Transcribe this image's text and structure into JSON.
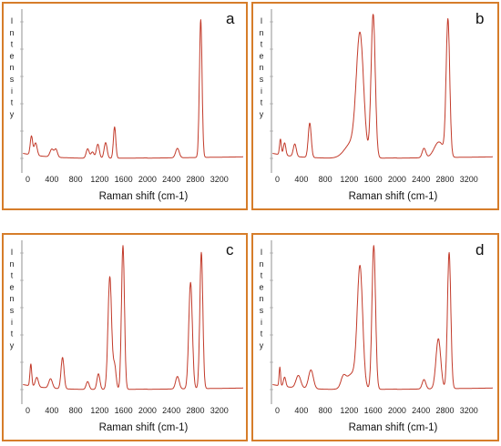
{
  "chart_data": [
    {
      "type": "line",
      "panel_label": "a",
      "xlabel": "Raman shift (cm-1)",
      "ylabel": "Intensity",
      "xticks": [
        0,
        400,
        800,
        1200,
        1600,
        2000,
        2400,
        2800,
        3200
      ],
      "xlim": [
        -100,
        3600
      ],
      "ylim": [
        0,
        100
      ],
      "line_color": "#c23a2a",
      "peaks": [
        {
          "x": 60,
          "y": 12,
          "w": 20
        },
        {
          "x": 130,
          "y": 8,
          "w": 25
        },
        {
          "x": 400,
          "y": 5,
          "w": 30
        },
        {
          "x": 470,
          "y": 5,
          "w": 25
        },
        {
          "x": 1000,
          "y": 6,
          "w": 25
        },
        {
          "x": 1080,
          "y": 4,
          "w": 25
        },
        {
          "x": 1170,
          "y": 9,
          "w": 25
        },
        {
          "x": 1300,
          "y": 10,
          "w": 25
        },
        {
          "x": 1450,
          "y": 20,
          "w": 20
        },
        {
          "x": 2500,
          "y": 6,
          "w": 30
        },
        {
          "x": 2890,
          "y": 88,
          "w": 22
        }
      ]
    },
    {
      "type": "line",
      "panel_label": "b",
      "xlabel": "Raman shift (cm-1)",
      "ylabel": "Intensity",
      "xticks": [
        0,
        400,
        800,
        1200,
        1600,
        2000,
        2400,
        2800,
        3200
      ],
      "xlim": [
        -100,
        3600
      ],
      "ylim": [
        0,
        100
      ],
      "line_color": "#c23a2a",
      "peaks": [
        {
          "x": 50,
          "y": 10,
          "w": 15
        },
        {
          "x": 120,
          "y": 8,
          "w": 20
        },
        {
          "x": 290,
          "y": 8,
          "w": 25
        },
        {
          "x": 540,
          "y": 22,
          "w": 25
        },
        {
          "x": 1380,
          "y": 75,
          "w": 60
        },
        {
          "x": 1250,
          "y": 10,
          "w": 120
        },
        {
          "x": 1600,
          "y": 92,
          "w": 35
        },
        {
          "x": 2450,
          "y": 6,
          "w": 30
        },
        {
          "x": 2700,
          "y": 10,
          "w": 80
        },
        {
          "x": 2850,
          "y": 87,
          "w": 30
        }
      ]
    },
    {
      "type": "line",
      "panel_label": "c",
      "xlabel": "Raman shift (cm-1)",
      "ylabel": "Intensity",
      "xticks": [
        0,
        400,
        800,
        1200,
        1600,
        2000,
        2400,
        2800,
        3200
      ],
      "xlim": [
        -100,
        3600
      ],
      "ylim": [
        0,
        100
      ],
      "line_color": "#c23a2a",
      "peaks": [
        {
          "x": 50,
          "y": 14,
          "w": 15
        },
        {
          "x": 150,
          "y": 6,
          "w": 25
        },
        {
          "x": 380,
          "y": 6,
          "w": 30
        },
        {
          "x": 580,
          "y": 20,
          "w": 25
        },
        {
          "x": 1000,
          "y": 5,
          "w": 25
        },
        {
          "x": 1180,
          "y": 10,
          "w": 25
        },
        {
          "x": 1370,
          "y": 72,
          "w": 30
        },
        {
          "x": 1450,
          "y": 15,
          "w": 25
        },
        {
          "x": 1590,
          "y": 92,
          "w": 25
        },
        {
          "x": 2500,
          "y": 8,
          "w": 30
        },
        {
          "x": 2720,
          "y": 68,
          "w": 30
        },
        {
          "x": 2900,
          "y": 87,
          "w": 25
        }
      ]
    },
    {
      "type": "line",
      "panel_label": "d",
      "xlabel": "Raman shift (cm-1)",
      "ylabel": "Intensity",
      "xticks": [
        0,
        400,
        800,
        1200,
        1600,
        2000,
        2400,
        2800,
        3200
      ],
      "xlim": [
        -100,
        3600
      ],
      "ylim": [
        0,
        100
      ],
      "line_color": "#c23a2a",
      "peaks": [
        {
          "x": 40,
          "y": 12,
          "w": 12
        },
        {
          "x": 120,
          "y": 6,
          "w": 20
        },
        {
          "x": 350,
          "y": 8,
          "w": 40
        },
        {
          "x": 560,
          "y": 12,
          "w": 40
        },
        {
          "x": 1100,
          "y": 6,
          "w": 40
        },
        {
          "x": 1380,
          "y": 75,
          "w": 45
        },
        {
          "x": 1250,
          "y": 10,
          "w": 100
        },
        {
          "x": 1610,
          "y": 92,
          "w": 30
        },
        {
          "x": 2450,
          "y": 6,
          "w": 30
        },
        {
          "x": 2690,
          "y": 32,
          "w": 40
        },
        {
          "x": 2870,
          "y": 87,
          "w": 28
        }
      ]
    }
  ]
}
